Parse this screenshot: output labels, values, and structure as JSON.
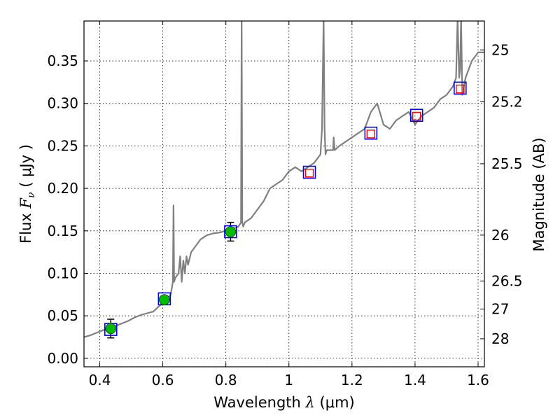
{
  "chart_data": {
    "type": "scatter",
    "xlabel": {
      "prefix": "Wavelength",
      "symbol": "λ",
      "unit": "(μm)"
    },
    "ylabel": {
      "prefix": "Flux",
      "symbol": "F",
      "subscript": "ν",
      "unit": "( μJy )"
    },
    "y2label": "Magnitude (AB)",
    "xlim": [
      0.35,
      1.62
    ],
    "ylim": [
      -0.01,
      0.397
    ],
    "grid": true,
    "x_ticks": [
      0.4,
      0.6,
      0.8,
      1.0,
      1.2,
      1.4,
      1.6
    ],
    "x_tick_labels": [
      "0.4",
      "0.6",
      "0.8",
      "1",
      "1.2",
      "1.4",
      "1.6"
    ],
    "y_ticks": [
      0.0,
      0.05,
      0.1,
      0.15,
      0.2,
      0.25,
      0.3,
      0.35
    ],
    "y_tick_labels": [
      "0.00",
      "0.05",
      "0.10",
      "0.15",
      "0.20",
      "0.25",
      "0.30",
      "0.35"
    ],
    "y2_ticks": [
      {
        "label": "25",
        "flux": 0.363
      },
      {
        "label": "25.2",
        "flux": 0.302
      },
      {
        "label": "25.5",
        "flux": 0.229
      },
      {
        "label": "26",
        "flux": 0.145
      },
      {
        "label": "26.5",
        "flux": 0.091
      },
      {
        "label": "27",
        "flux": 0.058
      },
      {
        "label": "28",
        "flux": 0.023
      }
    ],
    "colors": {
      "model": "#808080",
      "measured_fill": "#00bb00",
      "errorbar": "#000000",
      "model_box": "#0000ff",
      "predicted_box": "#ff0000",
      "grid": "#000000"
    },
    "series": [
      {
        "kind": "line",
        "x": [
          0.35,
          0.37,
          0.39,
          0.41,
          0.43,
          0.45,
          0.47,
          0.49,
          0.51,
          0.53,
          0.55,
          0.57,
          0.59,
          0.61,
          0.625,
          0.632,
          0.634,
          0.636,
          0.64,
          0.65,
          0.655,
          0.66,
          0.665,
          0.67,
          0.675,
          0.68,
          0.69,
          0.7,
          0.72,
          0.74,
          0.76,
          0.78,
          0.8,
          0.82,
          0.84,
          0.848,
          0.85,
          0.852,
          0.855,
          0.86,
          0.88,
          0.9,
          0.92,
          0.94,
          0.96,
          0.98,
          1.0,
          1.02,
          1.04,
          1.06,
          1.08,
          1.1,
          1.105,
          1.11,
          1.113,
          1.116,
          1.12,
          1.14,
          1.142,
          1.145,
          1.16,
          1.18,
          1.2,
          1.22,
          1.24,
          1.26,
          1.28,
          1.3,
          1.32,
          1.34,
          1.36,
          1.38,
          1.4,
          1.42,
          1.44,
          1.46,
          1.48,
          1.5,
          1.52,
          1.53,
          1.535,
          1.54,
          1.543,
          1.546,
          1.55,
          1.56,
          1.58,
          1.6,
          1.62
        ],
        "y": [
          0.025,
          0.027,
          0.03,
          0.033,
          0.035,
          0.038,
          0.041,
          0.044,
          0.048,
          0.051,
          0.053,
          0.055,
          0.062,
          0.068,
          0.075,
          0.09,
          0.18,
          0.09,
          0.095,
          0.1,
          0.12,
          0.09,
          0.115,
          0.1,
          0.12,
          0.11,
          0.125,
          0.13,
          0.14,
          0.145,
          0.147,
          0.148,
          0.15,
          0.152,
          0.155,
          0.16,
          0.4,
          0.16,
          0.155,
          0.16,
          0.165,
          0.175,
          0.185,
          0.2,
          0.205,
          0.21,
          0.22,
          0.225,
          0.22,
          0.225,
          0.23,
          0.24,
          0.27,
          0.4,
          0.27,
          0.24,
          0.245,
          0.245,
          0.26,
          0.245,
          0.25,
          0.255,
          0.26,
          0.265,
          0.27,
          0.29,
          0.3,
          0.275,
          0.27,
          0.28,
          0.285,
          0.29,
          0.275,
          0.285,
          0.29,
          0.295,
          0.305,
          0.31,
          0.32,
          0.33,
          0.4,
          0.33,
          0.34,
          0.4,
          0.31,
          0.33,
          0.35,
          0.36,
          0.36
        ]
      },
      {
        "kind": "measured",
        "x": [
          0.435,
          0.605,
          0.815
        ],
        "y": [
          0.035,
          0.069,
          0.149
        ],
        "yerr": [
          0.011,
          0.004,
          0.011
        ]
      },
      {
        "kind": "model_boxes",
        "x": [
          0.435,
          0.605,
          0.815,
          1.065,
          1.26,
          1.405,
          1.543
        ],
        "y": [
          0.034,
          0.07,
          0.149,
          0.219,
          0.265,
          0.286,
          0.318
        ]
      },
      {
        "kind": "predicted_boxes",
        "x": [
          1.065,
          1.26,
          1.405,
          1.543
        ],
        "y": [
          0.218,
          0.264,
          0.285,
          0.317
        ]
      }
    ]
  }
}
